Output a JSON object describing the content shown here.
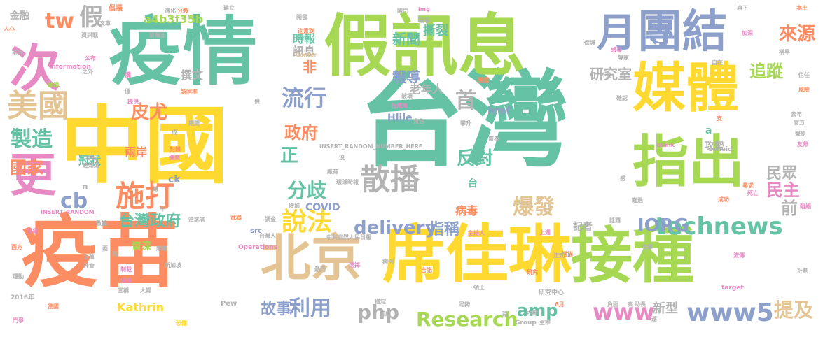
{
  "palette": {
    "teal": "#66c2a5",
    "orange": "#fc8d62",
    "blue": "#8da0cb",
    "pink": "#e78ac3",
    "green": "#a6d854",
    "yellow": "#ffd92f",
    "tan": "#e5c494",
    "grey": "#b3b3b3"
  },
  "words": [
    {
      "text": "台灣",
      "color": "teal"
    },
    {
      "text": "中國",
      "color": "yellow"
    },
    {
      "text": "疫苗",
      "color": "orange"
    },
    {
      "text": "疫情",
      "color": "teal"
    },
    {
      "text": "席佳琳",
      "color": "yellow"
    },
    {
      "text": "接種",
      "color": "green"
    },
    {
      "text": "假訊息",
      "color": "green"
    },
    {
      "text": "媒體",
      "color": "yellow"
    },
    {
      "text": "指出",
      "color": "green"
    },
    {
      "text": "北京",
      "color": "tan"
    },
    {
      "text": "團結",
      "color": "blue"
    },
    {
      "text": "次",
      "color": "pink"
    },
    {
      "text": "更",
      "color": "pink"
    },
    {
      "text": "月",
      "color": "blue"
    },
    {
      "text": "散播",
      "color": "grey"
    },
    {
      "text": "美國",
      "color": "tan"
    },
    {
      "text": "製造",
      "color": "teal"
    },
    {
      "text": "流行",
      "color": "blue"
    },
    {
      "text": "施打",
      "color": "orange"
    },
    {
      "text": "說法",
      "color": "yellow"
    },
    {
      "text": "分歧",
      "color": "teal"
    },
    {
      "text": "technews",
      "color": "teal"
    },
    {
      "text": "www5",
      "color": "blue"
    },
    {
      "text": "www",
      "color": "pink"
    },
    {
      "text": "delivery",
      "color": "blue"
    },
    {
      "text": "Research",
      "color": "green"
    },
    {
      "text": "利用",
      "color": "blue"
    },
    {
      "text": "爆發",
      "color": "tan"
    },
    {
      "text": "IORG",
      "color": "blue"
    },
    {
      "text": "皮尤",
      "color": "orange"
    },
    {
      "text": "tw",
      "color": "orange"
    },
    {
      "text": "假",
      "color": "grey"
    },
    {
      "text": "cb",
      "color": "blue"
    },
    {
      "text": "國家",
      "color": "orange"
    },
    {
      "text": "政府",
      "color": "orange"
    },
    {
      "text": "反對",
      "color": "teal"
    },
    {
      "text": "民眾",
      "color": "grey"
    },
    {
      "text": "民主",
      "color": "pink"
    },
    {
      "text": "來源",
      "color": "orange"
    },
    {
      "text": "追蹤",
      "color": "green"
    },
    {
      "text": "首",
      "color": "grey"
    },
    {
      "text": "正",
      "color": "teal"
    },
    {
      "text": "前",
      "color": "grey"
    },
    {
      "text": "php",
      "color": "grey"
    },
    {
      "text": "amp",
      "color": "teal"
    },
    {
      "text": "故事",
      "color": "blue"
    },
    {
      "text": "提及",
      "color": "tan"
    },
    {
      "text": "台灣政府",
      "color": "teal"
    },
    {
      "text": "指稱",
      "color": "blue"
    },
    {
      "text": "新聞",
      "color": "teal"
    },
    {
      "text": "報導",
      "color": "blue"
    },
    {
      "text": "研究室",
      "color": "grey"
    },
    {
      "text": "撕裂",
      "color": "teal"
    },
    {
      "text": "時報",
      "color": "teal"
    },
    {
      "text": "訊息",
      "color": "grey"
    },
    {
      "text": "非",
      "color": "orange"
    },
    {
      "text": "老年人",
      "color": "grey"
    },
    {
      "text": "撰文",
      "color": "grey"
    },
    {
      "text": "冠狀",
      "color": "teal"
    },
    {
      "text": "兩岸",
      "color": "orange"
    },
    {
      "text": "病毒",
      "color": "orange"
    },
    {
      "text": "COVID",
      "color": "blue"
    },
    {
      "text": "Hille",
      "color": "blue"
    },
    {
      "text": "Kathrin",
      "color": "yellow"
    },
    {
      "text": "href",
      "color": "blue"
    },
    {
      "text": "新型",
      "color": "grey"
    },
    {
      "text": "記者",
      "color": "grey"
    },
    {
      "text": "資深",
      "color": "green"
    },
    {
      "text": "攻勢",
      "color": "grey"
    },
    {
      "text": "a4b3f35b",
      "color": "green"
    },
    {
      "text": "ck",
      "color": "blue"
    },
    {
      "text": "台",
      "color": "teal"
    },
    {
      "text": "金融",
      "color": "grey"
    },
    {
      "text": "INSERT_RANDOM_NUMBER_HERE",
      "color": "grey"
    },
    {
      "text": "INSERT_RANDOM_",
      "color": "pink"
    },
    {
      "text": "zoneid",
      "color": "grey"
    },
    {
      "text": "_blank",
      "color": "pink"
    },
    {
      "text": "Information",
      "color": "pink"
    },
    {
      "text": "Operations",
      "color": "pink"
    },
    {
      "text": "Center",
      "color": "tan"
    },
    {
      "text": "src",
      "color": "blue"
    },
    {
      "text": "Pew",
      "color": "grey"
    },
    {
      "text": "Group",
      "color": "grey"
    },
    {
      "text": "target",
      "color": "pink"
    },
    {
      "text": "2016年",
      "color": "grey"
    },
    {
      "text": "中共官媒人民日報",
      "color": "grey"
    },
    {
      "text": "環球時報",
      "color": "grey"
    },
    {
      "text": "研究中心",
      "color": "grey"
    },
    {
      "text": "a",
      "color": "teal"
    },
    {
      "text": "n",
      "color": "grey"
    },
    {
      "text": "img",
      "color": "pink"
    },
    {
      "text": "僑",
      "color": "pink"
    },
    {
      "text": "公布",
      "color": "pink"
    },
    {
      "text": "之外",
      "color": "grey"
    },
    {
      "text": "驗證",
      "color": "green"
    },
    {
      "text": "資訊戰",
      "color": "grey"
    },
    {
      "text": "人心",
      "color": "orange"
    },
    {
      "text": "前往",
      "color": "grey"
    },
    {
      "text": "文章",
      "color": "grey"
    },
    {
      "text": "倡議",
      "color": "orange"
    },
    {
      "text": "發展出",
      "color": "grey"
    },
    {
      "text": "分裂",
      "color": "orange"
    },
    {
      "text": "認同率",
      "color": "orange"
    },
    {
      "text": "提供",
      "color": "pink"
    },
    {
      "text": "供",
      "color": "grey"
    },
    {
      "text": "期間",
      "color": "grey"
    },
    {
      "text": "角色",
      "color": "grey"
    },
    {
      "text": "著名",
      "color": "grey"
    },
    {
      "text": "遊知道",
      "color": "grey"
    },
    {
      "text": "嫌棄",
      "color": "pink"
    },
    {
      "text": "封鎖",
      "color": "orange"
    },
    {
      "text": "廠商",
      "color": "grey"
    },
    {
      "text": "沒",
      "color": "grey"
    },
    {
      "text": "增加",
      "color": "grey"
    },
    {
      "text": "造謠者",
      "color": "grey"
    },
    {
      "text": "武器",
      "color": "orange"
    },
    {
      "text": "調查",
      "color": "grey"
    },
    {
      "text": "主持人",
      "color": "pink"
    },
    {
      "text": "台灣人",
      "color": "grey"
    },
    {
      "text": "人士",
      "color": "orange"
    },
    {
      "text": "摩擦",
      "color": "grey"
    },
    {
      "text": "上萬",
      "color": "grey"
    },
    {
      "text": "社會",
      "color": "grey"
    },
    {
      "text": "新加坡",
      "color": "grey"
    },
    {
      "text": "制裁",
      "color": "pink"
    },
    {
      "text": "宣稱",
      "color": "grey"
    },
    {
      "text": "大幅",
      "color": "grey"
    },
    {
      "text": "扮演",
      "color": "pink"
    },
    {
      "text": "恐懼",
      "color": "yellow"
    },
    {
      "text": "病例",
      "color": "grey"
    },
    {
      "text": "熱門",
      "color": "grey"
    },
    {
      "text": "選擇",
      "color": "pink"
    },
    {
      "text": "吉諾",
      "color": "orange"
    },
    {
      "text": "穩定",
      "color": "grey"
    },
    {
      "text": "加劇",
      "color": "grey"
    },
    {
      "text": "足夠",
      "color": "grey"
    },
    {
      "text": "領土",
      "color": "grey"
    },
    {
      "text": "內部",
      "color": "grey"
    },
    {
      "text": "主宰",
      "color": "grey"
    },
    {
      "text": "6月",
      "color": "orange"
    },
    {
      "text": "負面",
      "color": "grey"
    },
    {
      "text": "助長",
      "color": "grey"
    },
    {
      "text": "高",
      "color": "grey"
    },
    {
      "text": "逐",
      "color": "grey"
    },
    {
      "text": "運動",
      "color": "grey"
    },
    {
      "text": "德國",
      "color": "orange"
    },
    {
      "text": "門爭",
      "color": "pink"
    },
    {
      "text": "西方",
      "color": "orange"
    },
    {
      "text": "撰寫",
      "color": "pink"
    },
    {
      "text": "數據",
      "color": "grey"
    },
    {
      "text": "雨",
      "color": "grey"
    },
    {
      "text": "攻擊",
      "color": "grey"
    },
    {
      "text": "流傳",
      "color": "pink"
    },
    {
      "text": "掃描",
      "color": "orange"
    },
    {
      "text": "上週",
      "color": "pink"
    },
    {
      "text": "正式",
      "color": "grey"
    },
    {
      "text": "研究",
      "color": "orange"
    },
    {
      "text": "計劃",
      "color": "grey"
    },
    {
      "text": "話題",
      "color": "grey"
    },
    {
      "text": "成功",
      "color": "orange"
    },
    {
      "text": "死亡",
      "color": "pink"
    },
    {
      "text": "阻絕",
      "color": "pink"
    },
    {
      "text": "尋求",
      "color": "orange"
    },
    {
      "text": "寫過",
      "color": "grey"
    },
    {
      "text": "感",
      "color": "grey"
    },
    {
      "text": "友邦",
      "color": "pink"
    },
    {
      "text": "去年",
      "color": "grey"
    },
    {
      "text": "官方",
      "color": "grey"
    },
    {
      "text": "聲原",
      "color": "grey"
    },
    {
      "text": "支",
      "color": "orange"
    },
    {
      "text": "確認",
      "color": "grey"
    },
    {
      "text": "風險",
      "color": "orange"
    },
    {
      "text": "信任",
      "color": "grey"
    },
    {
      "text": "稱早",
      "color": "grey"
    },
    {
      "text": "專家",
      "color": "grey"
    },
    {
      "text": "自在",
      "color": "grey"
    },
    {
      "text": "外交",
      "color": "grey"
    },
    {
      "text": "感染",
      "color": "pink"
    },
    {
      "text": "加深",
      "color": "pink"
    },
    {
      "text": "旗下",
      "color": "grey"
    },
    {
      "text": "本土",
      "color": "orange"
    },
    {
      "text": "保護",
      "color": "grey"
    },
    {
      "text": "國門",
      "color": "grey"
    },
    {
      "text": "開發",
      "color": "grey"
    },
    {
      "text": "建立",
      "color": "grey"
    },
    {
      "text": "注意到",
      "color": "orange"
    },
    {
      "text": "破裂",
      "color": "grey"
    },
    {
      "text": "破壞",
      "color": "grey"
    },
    {
      "text": "團體",
      "color": "orange"
    },
    {
      "text": "台灣島",
      "color": "pink"
    },
    {
      "text": "攀升",
      "color": "grey"
    },
    {
      "text": "蓋為",
      "color": "grey"
    },
    {
      "text": "總",
      "color": "grey"
    },
    {
      "text": "千",
      "color": "grey"
    },
    {
      "text": "僅",
      "color": "grey"
    },
    {
      "text": "兩",
      "color": "grey"
    },
    {
      "text": "遺化",
      "color": "grey"
    },
    {
      "text": "路",
      "color": "grey"
    },
    {
      "text": "成",
      "color": "grey"
    }
  ]
}
